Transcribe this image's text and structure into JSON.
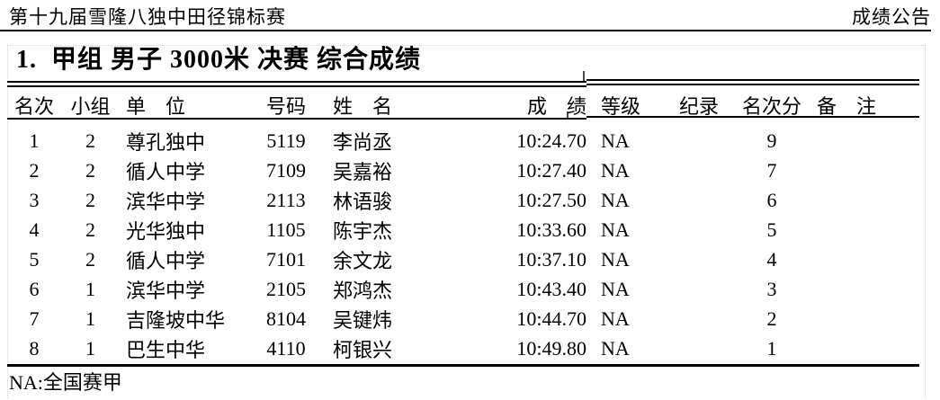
{
  "page_header": {
    "left_title": "第十九届雪隆八独中田径锦标赛",
    "right_label": "成绩公告"
  },
  "event": {
    "title": "1.  甲组 男子 3000米 决赛 综合成绩"
  },
  "results_table": {
    "headers": {
      "rank": "名次",
      "heat": "小组",
      "team": "单　位",
      "bib": "号码",
      "name": "姓　名",
      "result": "成　绩",
      "grade": "等级",
      "record": "纪录",
      "points": "名次分",
      "remark": "备　注"
    },
    "rows": [
      {
        "rank": "1",
        "heat": "2",
        "team": "尊孔独中",
        "bib": "5119",
        "name": "李尚丞",
        "result": "10:24.70",
        "grade": "NA",
        "record": "",
        "points": "9",
        "remark": ""
      },
      {
        "rank": "2",
        "heat": "2",
        "team": "循人中学",
        "bib": "7109",
        "name": "吴嘉裕",
        "result": "10:27.40",
        "grade": "NA",
        "record": "",
        "points": "7",
        "remark": ""
      },
      {
        "rank": "3",
        "heat": "2",
        "team": "滨华中学",
        "bib": "2113",
        "name": "林语骏",
        "result": "10:27.50",
        "grade": "NA",
        "record": "",
        "points": "6",
        "remark": ""
      },
      {
        "rank": "4",
        "heat": "2",
        "team": "光华独中",
        "bib": "1105",
        "name": "陈宇杰",
        "result": "10:33.60",
        "grade": "NA",
        "record": "",
        "points": "5",
        "remark": ""
      },
      {
        "rank": "5",
        "heat": "2",
        "team": "循人中学",
        "bib": "7101",
        "name": "余文龙",
        "result": "10:37.10",
        "grade": "NA",
        "record": "",
        "points": "4",
        "remark": ""
      },
      {
        "rank": "6",
        "heat": "1",
        "team": "滨华中学",
        "bib": "2105",
        "name": "郑鸿杰",
        "result": "10:43.40",
        "grade": "NA",
        "record": "",
        "points": "3",
        "remark": ""
      },
      {
        "rank": "7",
        "heat": "1",
        "team": "吉隆坡中华",
        "bib": "8104",
        "name": "吴键炜",
        "result": "10:44.70",
        "grade": "NA",
        "record": "",
        "points": "2",
        "remark": ""
      },
      {
        "rank": "8",
        "heat": "1",
        "team": "巴生中华",
        "bib": "4110",
        "name": "柯银兴",
        "result": "10:49.80",
        "grade": "NA",
        "record": "",
        "points": "1",
        "remark": ""
      }
    ]
  },
  "footnote": "NA:全国赛甲",
  "colors": {
    "text": "#000000",
    "rule": "#000000",
    "dotted_grid": "#d6d6d6"
  }
}
